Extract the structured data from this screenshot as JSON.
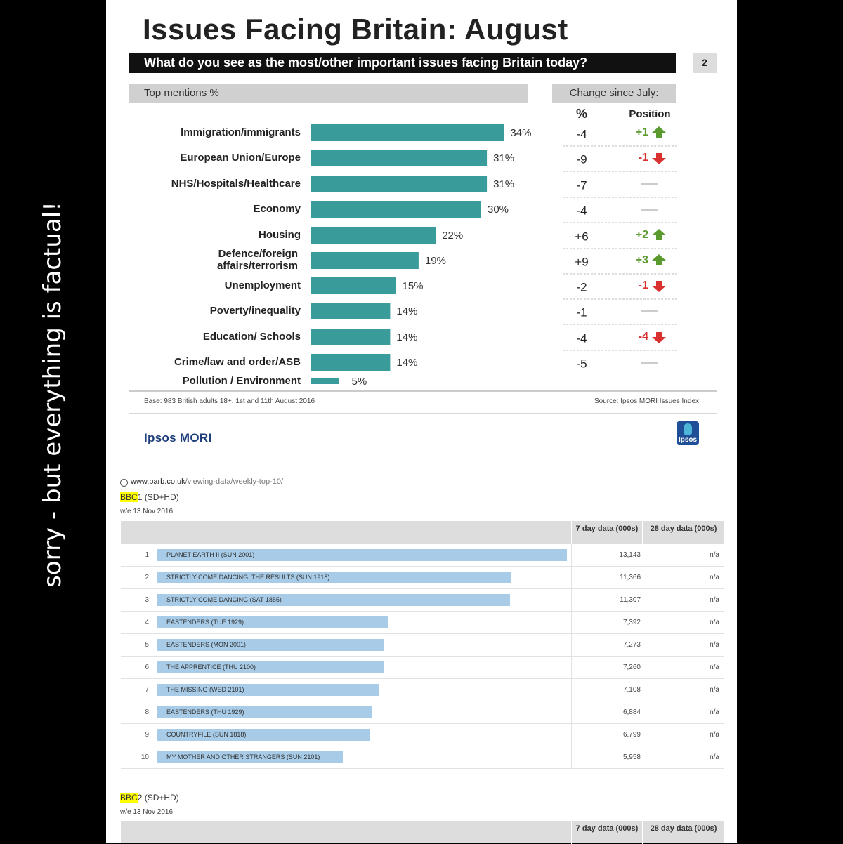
{
  "side_caption": "sorry - but everything is factual!",
  "ipsos": {
    "title": "Issues Facing Britain: August",
    "question": "What do you see as the most/other important issues facing Britain today?",
    "page_number": "2",
    "top_mentions_label": "Top mentions %",
    "change_label": "Change since July:",
    "pct_header": "%",
    "position_header": "Position",
    "base_note": "Base: 983 British adults 18+, 1st and 11th August 2016",
    "source_note": "Source: Ipsos MORI Issues Index",
    "brand": "Ipsos MORI",
    "logo_text": "Ipsos",
    "colors": {
      "bar": "#3a9b9b",
      "up": "#5a9a2e",
      "down": "#d93030",
      "flat": "#cccccc"
    }
  },
  "chart_data": [
    {
      "type": "bar",
      "orientation": "horizontal",
      "title": "Issues Facing Britain: August",
      "subtitle": "What do you see as the most/other important issues facing Britain today?",
      "xlabel": "Top mentions %",
      "xlim": [
        0,
        40
      ],
      "categories": [
        "Immigration/immigrants",
        "European Union/Europe",
        "NHS/Hospitals/Healthcare",
        "Economy",
        "Housing",
        "Defence/foreign affairs/terrorism",
        "Unemployment",
        "Poverty/inequality",
        "Education/ Schools",
        "Crime/law and order/ASB",
        "Pollution / Environment"
      ],
      "values": [
        34,
        31,
        31,
        30,
        22,
        19,
        15,
        14,
        14,
        14,
        5
      ],
      "value_labels": [
        "34%",
        "31%",
        "31%",
        "30%",
        "22%",
        "19%",
        "15%",
        "14%",
        "14%",
        "14%",
        "5%"
      ],
      "change_pct": [
        "-4",
        "-9",
        "-7",
        "-4",
        "+6",
        "+9",
        "-2",
        "-1",
        "-4",
        "-5",
        null
      ],
      "position_change": [
        {
          "label": "+1",
          "dir": "up"
        },
        {
          "label": "-1",
          "dir": "down"
        },
        {
          "label": "",
          "dir": "flat"
        },
        {
          "label": "",
          "dir": "flat"
        },
        {
          "label": "+2",
          "dir": "up"
        },
        {
          "label": "+3",
          "dir": "up"
        },
        {
          "label": "-1",
          "dir": "down"
        },
        {
          "label": "",
          "dir": "flat"
        },
        {
          "label": "-4",
          "dir": "down"
        },
        {
          "label": "",
          "dir": "flat"
        },
        null
      ]
    },
    {
      "type": "bar",
      "orientation": "horizontal",
      "title": "BBC1 (SD+HD) weekly top 10",
      "xlabel": "7 day data (000s)",
      "xlim": [
        0,
        13143
      ],
      "categories": [
        "PLANET EARTH II (SUN 2001)",
        "STRICTLY COME DANCING: THE RESULTS (SUN 1918)",
        "STRICTLY COME DANCING (SAT 1855)",
        "EASTENDERS (TUE 1929)",
        "EASTENDERS (MON 2001)",
        "THE APPRENTICE (THU 2100)",
        "THE MISSING (WED 2101)",
        "EASTENDERS (THU 1929)",
        "COUNTRYFILE (SUN 1818)",
        "MY MOTHER AND OTHER STRANGERS (SUN 2101)"
      ],
      "values": [
        13143,
        11366,
        11307,
        7392,
        7273,
        7260,
        7108,
        6884,
        6799,
        5958
      ]
    }
  ],
  "barb": {
    "url_host": "www.barb.co.uk",
    "url_path": "/viewing-data/weekly-top-10/",
    "col_7day": "7 day data (000s)",
    "col_28day": "28 day data (000s)",
    "bbc1": {
      "title_hl": "BBC",
      "title_rest": "1 (SD+HD)",
      "week": "w/e 13 Nov 2016",
      "rows": [
        {
          "rank": "1",
          "programme": "PLANET EARTH II (SUN 2001)",
          "v7": "13,143",
          "v28": "n/a"
        },
        {
          "rank": "2",
          "programme": "STRICTLY COME DANCING: THE RESULTS (SUN 1918)",
          "v7": "11,366",
          "v28": "n/a"
        },
        {
          "rank": "3",
          "programme": "STRICTLY COME DANCING (SAT 1855)",
          "v7": "11,307",
          "v28": "n/a"
        },
        {
          "rank": "4",
          "programme": "EASTENDERS (TUE 1929)",
          "v7": "7,392",
          "v28": "n/a"
        },
        {
          "rank": "5",
          "programme": "EASTENDERS (MON 2001)",
          "v7": "7,273",
          "v28": "n/a"
        },
        {
          "rank": "6",
          "programme": "THE APPRENTICE (THU 2100)",
          "v7": "7,260",
          "v28": "n/a"
        },
        {
          "rank": "7",
          "programme": "THE MISSING (WED 2101)",
          "v7": "7,108",
          "v28": "n/a"
        },
        {
          "rank": "8",
          "programme": "EASTENDERS (THU 1929)",
          "v7": "6,884",
          "v28": "n/a"
        },
        {
          "rank": "9",
          "programme": "COUNTRYFILE (SUN 1818)",
          "v7": "6,799",
          "v28": "n/a"
        },
        {
          "rank": "10",
          "programme": "MY MOTHER AND OTHER STRANGERS (SUN 2101)",
          "v7": "5,958",
          "v28": "n/a"
        }
      ]
    },
    "bbc2": {
      "title_hl": "BBC",
      "title_rest": "2 (SD+HD)",
      "week": "w/e 13 Nov 2016"
    }
  }
}
